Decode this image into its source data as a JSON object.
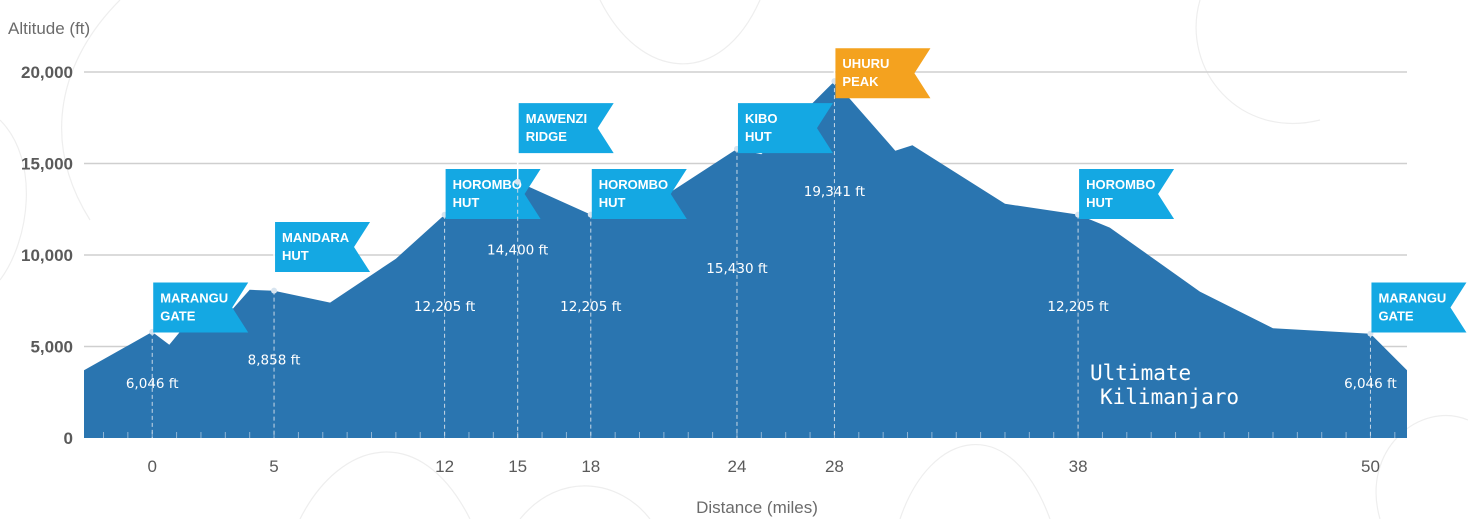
{
  "chart_data": {
    "type": "area",
    "xlabel": "Distance (miles)",
    "ylabel": "Altitude (ft)",
    "xlim": [
      -2.8,
      51.5
    ],
    "ylim": [
      0,
      20000
    ],
    "yticks": [
      {
        "value": 0,
        "label": "0"
      },
      {
        "value": 5000,
        "label": "5,000"
      },
      {
        "value": 10000,
        "label": "10,000"
      },
      {
        "value": 15000,
        "label": "15,000"
      },
      {
        "value": 20000,
        "label": "20,000"
      }
    ],
    "xticks": [
      {
        "value": 0,
        "label": "0"
      },
      {
        "value": 5,
        "label": "5"
      },
      {
        "value": 12,
        "label": "12"
      },
      {
        "value": 15,
        "label": "15"
      },
      {
        "value": 18,
        "label": "18"
      },
      {
        "value": 24,
        "label": "24"
      },
      {
        "value": 28,
        "label": "28"
      },
      {
        "value": 38,
        "label": "38"
      },
      {
        "value": 50,
        "label": "50"
      }
    ],
    "grid": true,
    "profile": [
      [
        -2.8,
        3700
      ],
      [
        0,
        5800
      ],
      [
        0.7,
        5100
      ],
      [
        2,
        7200
      ],
      [
        3.2,
        6900
      ],
      [
        4,
        8100
      ],
      [
        5,
        8050
      ],
      [
        7.3,
        7400
      ],
      [
        10,
        9800
      ],
      [
        12,
        12200
      ],
      [
        15,
        14000
      ],
      [
        18,
        12205
      ],
      [
        19,
        12400
      ],
      [
        21,
        13200
      ],
      [
        24,
        15800
      ],
      [
        25,
        15500
      ],
      [
        28,
        19500
      ],
      [
        30.5,
        15700
      ],
      [
        31.2,
        16000
      ],
      [
        35,
        12800
      ],
      [
        38,
        12205
      ],
      [
        39.3,
        11500
      ],
      [
        43,
        8000
      ],
      [
        46,
        6000
      ],
      [
        50,
        5700
      ],
      [
        51.5,
        3700
      ]
    ],
    "waypoints": [
      {
        "x": 0,
        "y": 5800,
        "flag": [
          "MARANGU",
          "GATE"
        ],
        "flag_y": 8500,
        "altitude": "6,046 ft",
        "label_y": 3000,
        "highlight": false
      },
      {
        "x": 5,
        "y": 8050,
        "flag": [
          "MANDARA",
          "HUT"
        ],
        "flag_y": 11800,
        "altitude": "8,858 ft",
        "label_y": 4300,
        "highlight": false
      },
      {
        "x": 12,
        "y": 12200,
        "flag": [
          "HOROMBO",
          "HUT"
        ],
        "flag_y": 14700,
        "altitude": "12,205 ft",
        "label_y": 7200,
        "highlight": false
      },
      {
        "x": 15,
        "y": 14000,
        "flag": [
          "MAWENZI",
          "RIDGE"
        ],
        "flag_y": 18300,
        "altitude": "14,400 ft",
        "label_y": 10300,
        "highlight": false
      },
      {
        "x": 18,
        "y": 12205,
        "flag": [
          "HOROMBO",
          "HUT"
        ],
        "flag_y": 14700,
        "altitude": "12,205 ft",
        "label_y": 7200,
        "highlight": false
      },
      {
        "x": 24,
        "y": 15800,
        "flag": [
          "KIBO",
          "HUT"
        ],
        "flag_y": 18300,
        "altitude": "15,430 ft",
        "label_y": 9300,
        "highlight": false
      },
      {
        "x": 28,
        "y": 19500,
        "flag": [
          "UHURU",
          "PEAK"
        ],
        "flag_y": 21300,
        "altitude": "19,341 ft",
        "label_y": 13500,
        "highlight": true
      },
      {
        "x": 38,
        "y": 12205,
        "flag": [
          "HOROMBO",
          "HUT"
        ],
        "flag_y": 14700,
        "altitude": "12,205 ft",
        "label_y": 7200,
        "highlight": false
      },
      {
        "x": 50,
        "y": 5700,
        "flag": [
          "MARANGU",
          "GATE"
        ],
        "flag_y": 8500,
        "altitude": "6,046 ft",
        "label_y": 3000,
        "highlight": false
      }
    ]
  },
  "logo": {
    "line1": "Ultimate",
    "line2": "Kilimanjaro"
  },
  "colors": {
    "area": "#2a75b0",
    "flag": "#14a8e3",
    "highlight_flag": "#f4a21f",
    "grid": "#cfcfcf",
    "text": "#5a5a5a",
    "marker": "#c9d8e6"
  }
}
